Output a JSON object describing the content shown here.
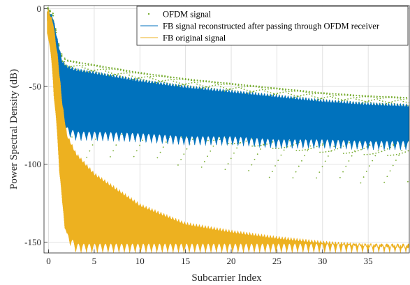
{
  "chart_data": {
    "type": "line",
    "xlabel": "Subcarrier Index",
    "ylabel": "Power Spectral Density (dB)",
    "xlim": [
      -0.5,
      39.5
    ],
    "ylim": [
      -157,
      2
    ],
    "x_ticks": [
      0,
      5,
      10,
      15,
      20,
      25,
      30,
      35
    ],
    "y_ticks": [
      0,
      -50,
      -100,
      -150
    ],
    "grid": true,
    "legend_position": "top-right",
    "series": [
      {
        "name": "OFDM signal",
        "style": "dots",
        "color": "#77ac30",
        "x": [
          0,
          0.5,
          1,
          1.5,
          2,
          3,
          5,
          10,
          15,
          20,
          25,
          30,
          35,
          39.5
        ],
        "y_upper": [
          0,
          -3,
          -20,
          -30,
          -33,
          -34,
          -36,
          -41,
          -45,
          -48,
          -51,
          -54,
          -56,
          -57
        ],
        "y_lower": [
          -10,
          -25,
          -45,
          -70,
          -100,
          -105,
          -105,
          -106,
          -110,
          -115,
          -118,
          -120,
          -121,
          -122
        ]
      },
      {
        "name": "FB signal reconstructed after passing through OFDM receiver",
        "style": "line",
        "color": "#0072bd",
        "x": [
          0,
          0.5,
          1,
          1.5,
          2,
          3,
          5,
          10,
          15,
          20,
          25,
          30,
          35,
          39.5
        ],
        "y_upper": [
          0,
          -5,
          -20,
          -33,
          -36,
          -38,
          -40,
          -45,
          -49,
          -52,
          -55,
          -58,
          -60,
          -61
        ],
        "y_lower": [
          -12,
          -30,
          -55,
          -75,
          -82,
          -85,
          -85,
          -86,
          -88,
          -88,
          -90,
          -90,
          -91,
          -91
        ]
      },
      {
        "name": "FB original signal",
        "style": "line",
        "color": "#edb120",
        "x": [
          0,
          0.5,
          1,
          1.5,
          2,
          3,
          5,
          10,
          15,
          20,
          25,
          30,
          35,
          39.5
        ],
        "y_upper": [
          0,
          -8,
          -30,
          -60,
          -80,
          -92,
          -105,
          -125,
          -137,
          -142,
          -146,
          -149,
          -151,
          -152
        ],
        "y_lower": [
          -20,
          -50,
          -90,
          -130,
          -150,
          -157,
          -157,
          -157,
          -157,
          -157,
          -157,
          -157,
          -157,
          -157
        ]
      }
    ]
  }
}
